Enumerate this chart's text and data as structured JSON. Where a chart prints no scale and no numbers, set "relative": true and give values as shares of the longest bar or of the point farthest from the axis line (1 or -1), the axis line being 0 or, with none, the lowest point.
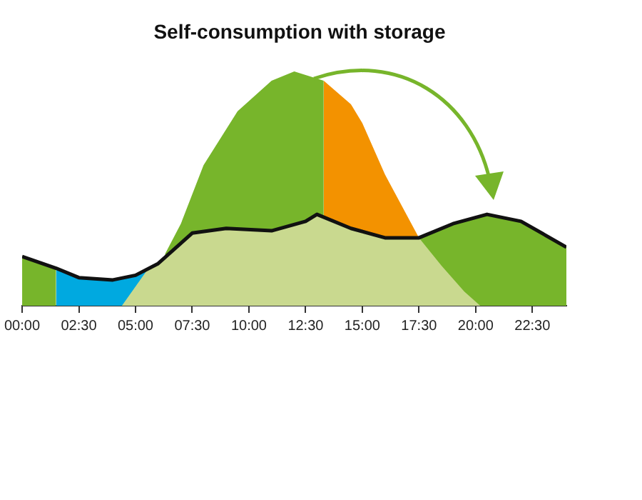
{
  "chart_data": {
    "type": "area",
    "title": "Self-consumption with storage",
    "relative": true,
    "grid": false,
    "marker": "none",
    "xlim": [
      0,
      24
    ],
    "xticks": [
      {
        "value": 0,
        "label": "00:00"
      },
      {
        "value": 2.5,
        "label": "02:30"
      },
      {
        "value": 5,
        "label": "05:00"
      },
      {
        "value": 7.5,
        "label": "07:30"
      },
      {
        "value": 10,
        "label": "10:00"
      },
      {
        "value": 12.5,
        "label": "12:30"
      },
      {
        "value": 15,
        "label": "15:00"
      },
      {
        "value": 17.5,
        "label": "17:30"
      },
      {
        "value": 20,
        "label": "20:00"
      },
      {
        "value": 22.5,
        "label": "22:30"
      }
    ],
    "series": [
      {
        "type": "area",
        "color": "#77b52b",
        "x": [
          0,
          1.5
        ],
        "values": [
          0.21,
          0.16
        ]
      },
      {
        "type": "area",
        "color": "#77b52b",
        "x": [
          17.5,
          19,
          20.5,
          22,
          24
        ],
        "values": [
          0.29,
          0.35,
          0.39,
          0.36,
          0.25
        ]
      },
      {
        "type": "area",
        "color": "#00a9e0",
        "x": [
          1.5,
          2.5,
          4,
          5,
          6
        ],
        "values": [
          0.16,
          0.12,
          0.11,
          0.13,
          0.18
        ]
      },
      {
        "type": "area",
        "color": "#77b52b",
        "x": [
          6.3,
          7,
          8,
          9.5,
          11,
          12,
          13.3
        ],
        "values": [
          0.22,
          0.35,
          0.6,
          0.83,
          0.96,
          1,
          0.96
        ]
      },
      {
        "type": "area",
        "color": "#f39200",
        "x": [
          13.3,
          14.5,
          15,
          16,
          17.5
        ],
        "values": [
          0.96,
          0.86,
          0.78,
          0.56,
          0.29
        ]
      },
      {
        "type": "area",
        "color": "#c9d98f",
        "x": [
          4.4,
          5.5,
          6,
          7.5,
          9,
          11,
          12.5,
          13,
          14.5,
          16,
          17.5,
          18.5,
          19.5,
          20.2
        ],
        "values": [
          0,
          0.15,
          0.18,
          0.31,
          0.33,
          0.32,
          0.36,
          0.39,
          0.33,
          0.29,
          0.29,
          0.17,
          0.06,
          0
        ]
      },
      {
        "type": "line",
        "color": "#111111",
        "x": [
          0,
          1.5,
          2.5,
          4,
          5,
          6,
          7.5,
          9,
          11,
          12.5,
          13,
          14.5,
          16,
          17.5,
          19,
          20.5,
          22,
          24
        ],
        "values": [
          0.21,
          0.16,
          0.12,
          0.11,
          0.13,
          0.18,
          0.31,
          0.33,
          0.32,
          0.36,
          0.39,
          0.33,
          0.29,
          0.29,
          0.35,
          0.39,
          0.36,
          0.25
        ]
      }
    ]
  }
}
